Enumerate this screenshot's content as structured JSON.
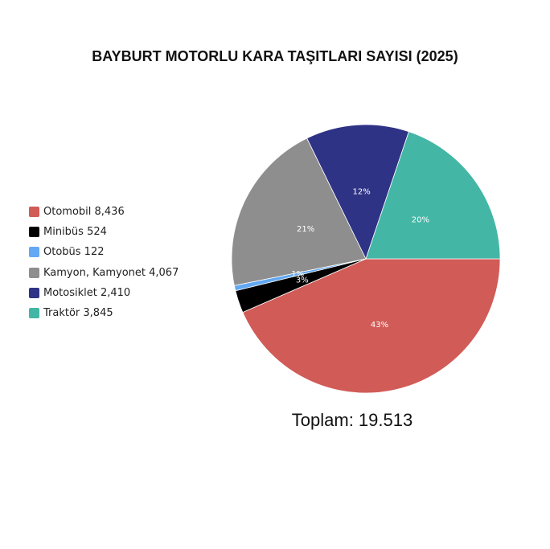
{
  "chart_data": {
    "type": "pie",
    "title": "BAYBURT MOTORLU KARA TAŞITLARI SAYISI (2025)",
    "slices": [
      {
        "label": "Otomobil",
        "value": 8436,
        "value_text": "8,436",
        "percent_text": "43%",
        "color": "#d15b57"
      },
      {
        "label": "Minibüs",
        "value": 524,
        "value_text": "524",
        "percent_text": "3%",
        "color": "#000000"
      },
      {
        "label": "Otobüs",
        "value": 122,
        "value_text": "122",
        "percent_text": "1%",
        "color": "#62a8f2"
      },
      {
        "label": "Kamyon, Kamyonet",
        "value": 4067,
        "value_text": "4,067",
        "percent_text": "21%",
        "color": "#8e8e8e"
      },
      {
        "label": "Motosiklet",
        "value": 2410,
        "value_text": "2,410",
        "percent_text": "12%",
        "color": "#2f3385"
      },
      {
        "label": "Traktör",
        "value": 3845,
        "value_text": "3,845",
        "percent_text": "20%",
        "color": "#44b6a5"
      }
    ],
    "legend_position": "left",
    "total_label": "Toplam: 19.513"
  }
}
